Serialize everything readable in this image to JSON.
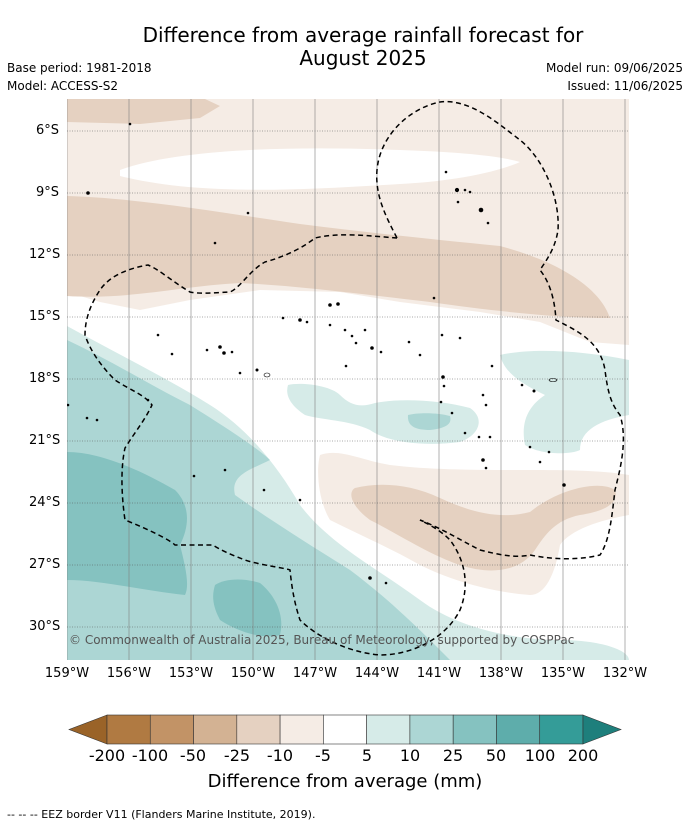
{
  "title_line1": "Difference from average rainfall forecast for",
  "title_line2": "August 2025",
  "base_period": "Base period: 1981-2018",
  "model": "Model: ACCESS-S2",
  "model_run": "Model run: 09/06/2025",
  "issued": "Issued: 11/06/2025",
  "lat_labels": [
    "6°S",
    "9°S",
    "12°S",
    "15°S",
    "18°S",
    "21°S",
    "24°S",
    "27°S",
    "30°S"
  ],
  "lon_labels": [
    "159°W",
    "156°W",
    "153°W",
    "150°W",
    "147°W",
    "144°W",
    "141°W",
    "138°W",
    "135°W",
    "132°W"
  ],
  "copyright": "© Commonwealth of Australia 2025, Bureau of Meteorology, supported by COSPPac",
  "colorbar": {
    "ticks": [
      "-200",
      "-100",
      "-50",
      "-25",
      "-10",
      "-5",
      "5",
      "10",
      "25",
      "50",
      "100",
      "200"
    ],
    "colors": [
      "#b07a42",
      "#c29366",
      "#d3b293",
      "#e5d1c1",
      "#f5ece5",
      "#ffffff",
      "#d6ebe8",
      "#acd6d4",
      "#85c2c0",
      "#5eadab",
      "#349c98"
    ],
    "low_extend_color": "#9a6328",
    "high_extend_color": "#1e7f7c",
    "label": "Difference from average (mm)"
  },
  "legend_note": "--  --  -- EEZ border V11 (Flanders Marine Institute, 2019)."
}
